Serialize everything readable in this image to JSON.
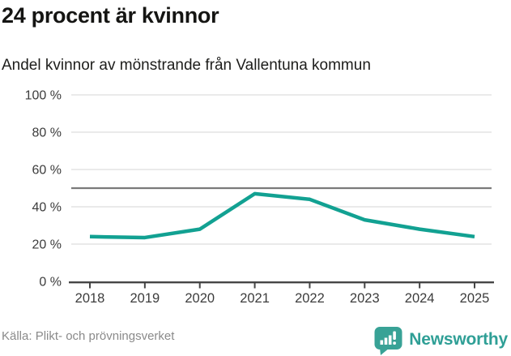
{
  "header": {
    "title": "24 procent är kvinnor",
    "subtitle": "Andel kvinnor av mönstrande från Vallentuna kommun"
  },
  "chart_data": {
    "type": "line",
    "title": "24 procent är kvinnor",
    "subtitle": "Andel kvinnor av mönstrande från Vallentuna kommun",
    "x": [
      "2018",
      "2019",
      "2020",
      "2021",
      "2022",
      "2023",
      "2024",
      "2025"
    ],
    "series": [
      {
        "name": "Andel kvinnor av mönstrande",
        "color": "#12a192",
        "values": [
          24,
          23.5,
          28,
          47,
          44,
          33,
          28,
          24
        ]
      }
    ],
    "reference_line": {
      "value": 50,
      "color": "#7a7a7a"
    },
    "ylim": [
      0,
      100
    ],
    "yticks": [
      0,
      20,
      40,
      60,
      80,
      100
    ],
    "ytick_suffix": " %",
    "xlabel": "",
    "ylabel": "",
    "grid": true,
    "legend": "none",
    "source": "Källa: Plikt- och prövningsverket"
  },
  "footer": {
    "source": "Källa: Plikt- och prövningsverket",
    "brand": "Newsworthy"
  },
  "colors": {
    "line_teal": "#12a192",
    "brand_teal": "#2f9f96",
    "logo_teal": "#38a296",
    "reference_gray": "#7a7a7a",
    "grid_gray": "#e4e4e4",
    "axis_gray": "#454545",
    "label_gray": "#3c3c3c",
    "source_gray": "#8a8a8a"
  }
}
